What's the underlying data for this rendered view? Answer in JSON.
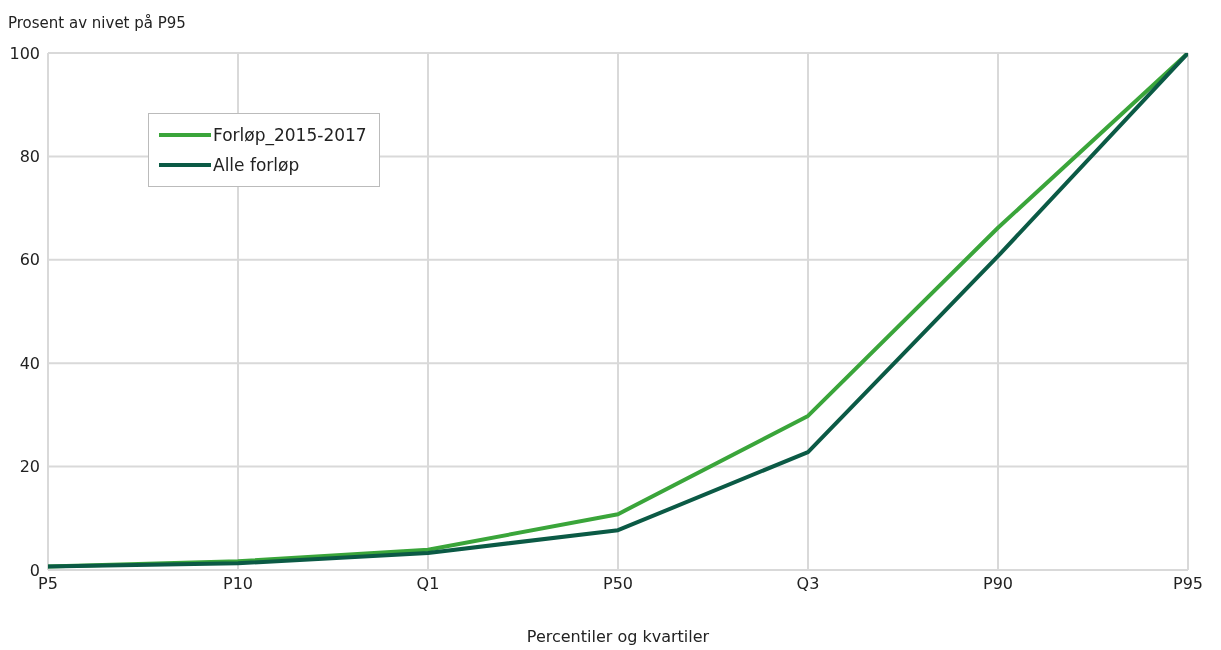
{
  "chart_data": {
    "type": "line",
    "ylabel": "Prosent av nivet på P95",
    "xlabel": "Percentiler og kvartiler",
    "categories": [
      "P5",
      "P10",
      "Q1",
      "P50",
      "Q3",
      "P90",
      "P95"
    ],
    "series": [
      {
        "name": "Forløp_2015-2017",
        "color": "#3aa53a",
        "values": [
          0.7,
          1.7,
          3.9,
          10.8,
          29.8,
          66.2,
          100
        ]
      },
      {
        "name": "Alle forløp",
        "color": "#0b5a45",
        "values": [
          0.7,
          1.3,
          3.3,
          7.7,
          22.8,
          60.7,
          100
        ]
      }
    ],
    "ylim": [
      0,
      100
    ],
    "yticks": [
      0,
      20,
      40,
      60,
      80,
      100
    ],
    "grid": true,
    "legend": "top left",
    "marker": "none",
    "line_style": "solid"
  }
}
